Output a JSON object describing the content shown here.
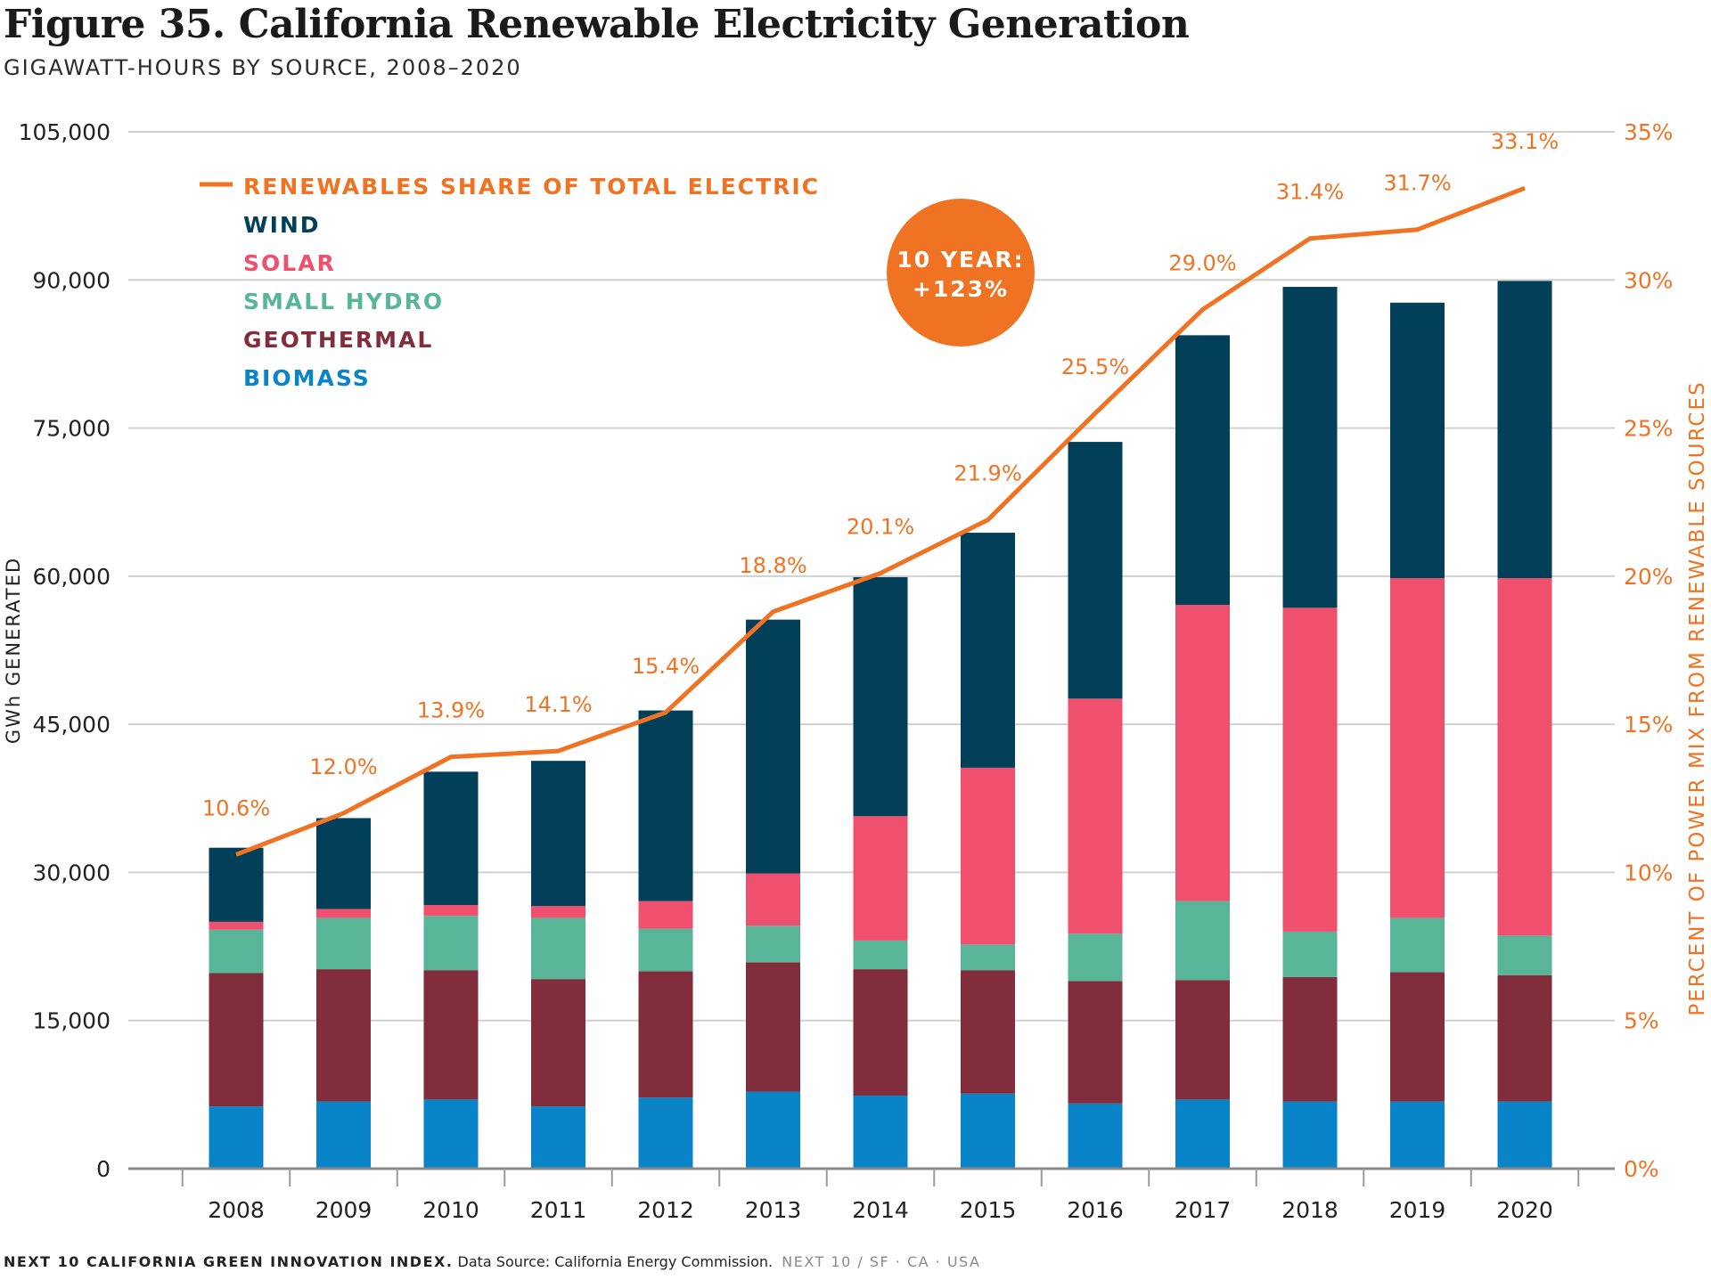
{
  "header": {
    "title": "Figure 35. California Renewable Electricity Generation",
    "subtitle": "GIGAWATT-HOURS BY SOURCE, 2008–2020"
  },
  "footer": {
    "source_bold": "NEXT 10 CALIFORNIA GREEN INNOVATION INDEX.",
    "source_text": " Data Source: California Energy Commission.",
    "source_tail": "NEXT 10  /  SF · CA · USA"
  },
  "callout": {
    "line1": "10 YEAR:",
    "line2": "+123%",
    "color": "#f07323"
  },
  "chart_data": {
    "type": "bar",
    "stacked": true,
    "categories": [
      "2008",
      "2009",
      "2010",
      "2011",
      "2012",
      "2013",
      "2014",
      "2015",
      "2016",
      "2017",
      "2018",
      "2019",
      "2020"
    ],
    "series": [
      {
        "name": "BIOMASS",
        "color": "#0a84c8",
        "values": [
          6300,
          6800,
          7000,
          6300,
          7200,
          7800,
          7400,
          7600,
          6600,
          7000,
          6800,
          6800,
          6800
        ]
      },
      {
        "name": "GEOTHERMAL",
        "color": "#822d3c",
        "values": [
          13500,
          13400,
          13100,
          12900,
          12800,
          13100,
          12800,
          12500,
          12400,
          12100,
          12600,
          13100,
          12800
        ]
      },
      {
        "name": "SMALL HYDRO",
        "color": "#58b598",
        "values": [
          4400,
          5200,
          5500,
          6200,
          4300,
          3700,
          2900,
          2600,
          4800,
          8000,
          4600,
          5500,
          4000
        ]
      },
      {
        "name": "SOLAR",
        "color": "#ef506e",
        "values": [
          800,
          900,
          1100,
          1200,
          2800,
          5300,
          12600,
          17900,
          23800,
          30000,
          32800,
          34400,
          36200
        ]
      },
      {
        "name": "WIND",
        "color": "#023f58",
        "values": [
          7500,
          9200,
          13500,
          14700,
          19300,
          25700,
          24200,
          23800,
          26000,
          27300,
          32500,
          27900,
          30100
        ]
      }
    ],
    "line": {
      "name": "RENEWABLES SHARE OF TOTAL ELECTRIC",
      "color": "#f07323",
      "values": [
        10.6,
        12.0,
        13.9,
        14.1,
        15.4,
        18.8,
        20.1,
        21.9,
        25.5,
        29.0,
        31.4,
        31.7,
        33.1
      ],
      "labels": [
        "10.6%",
        "12.0%",
        "13.9%",
        "14.1%",
        "15.4%",
        "18.8%",
        "20.1%",
        "21.9%",
        "25.5%",
        "29.0%",
        "31.4%",
        "31.7%",
        "33.1%"
      ]
    },
    "legend_order": [
      "RENEWABLES SHARE OF TOTAL ELECTRIC",
      "WIND",
      "SOLAR",
      "SMALL HYDRO",
      "GEOTHERMAL",
      "BIOMASS"
    ],
    "legend_position": "top-left",
    "ylabel": "GWh GENERATED",
    "ylim": [
      0,
      105000
    ],
    "yticks": [
      0,
      15000,
      30000,
      45000,
      60000,
      75000,
      90000,
      105000
    ],
    "ytick_labels": [
      "0",
      "15,000",
      "30,000",
      "45,000",
      "60,000",
      "75,000",
      "90,000",
      "105,000"
    ],
    "y2label": "PERCENT OF POWER MIX FROM RENEWABLE SOURCES",
    "y2lim": [
      0,
      35
    ],
    "y2ticks": [
      0,
      5,
      10,
      15,
      20,
      25,
      30,
      35
    ],
    "y2tick_labels": [
      "0%",
      "5%",
      "10%",
      "15%",
      "20%",
      "25%",
      "30%",
      "35%"
    ],
    "grid": "horizontal"
  }
}
